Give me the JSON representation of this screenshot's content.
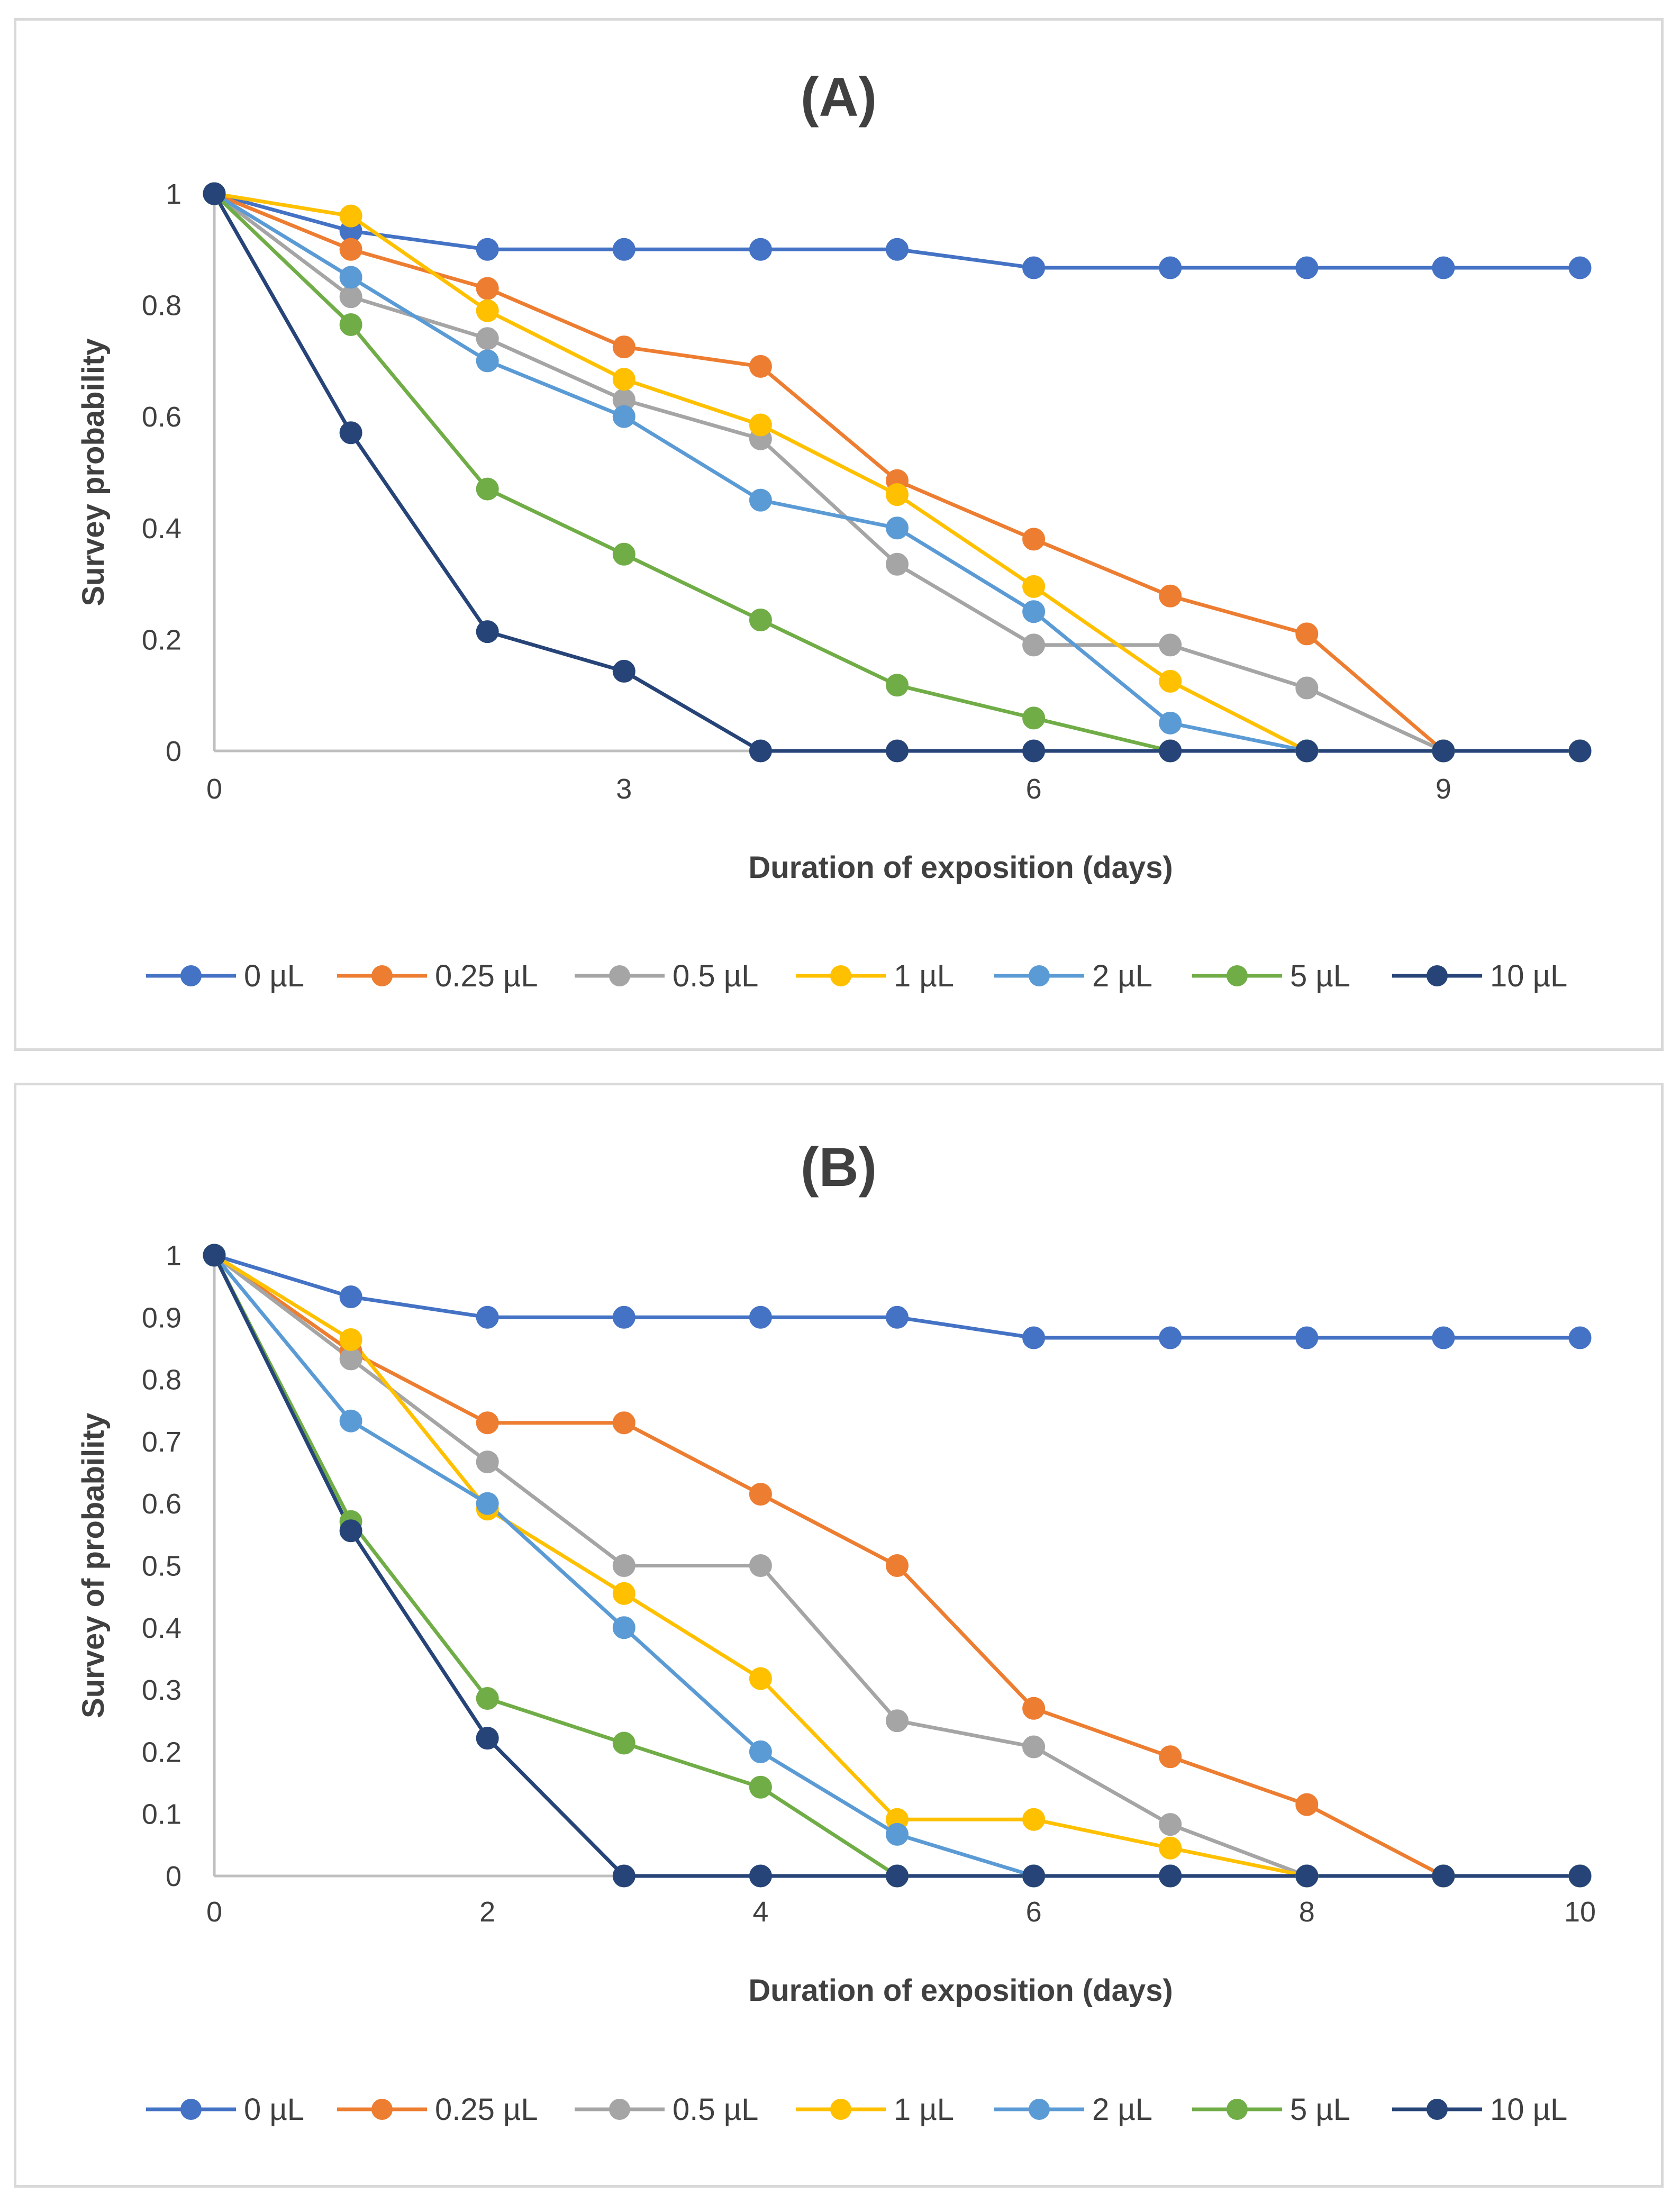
{
  "chart_data": [
    {
      "type": "line",
      "title": "(A)",
      "xlabel": "Duration of exposition (days)",
      "ylabel": "Survey probability",
      "xlim": [
        0,
        10
      ],
      "ylim": [
        0,
        1
      ],
      "xticks": [
        0,
        3,
        6,
        9
      ],
      "xtick_labels": [
        "0",
        "3",
        "6",
        "9"
      ],
      "yticks": [
        0,
        0.2,
        0.4,
        0.6,
        0.8,
        1
      ],
      "ytick_labels": [
        "0",
        "0.2",
        "0.4",
        "0.6",
        "0.8",
        "1"
      ],
      "legend": "bottom",
      "x": [
        0,
        1,
        2,
        3,
        4,
        5,
        6,
        7,
        8,
        9,
        10
      ],
      "series": [
        {
          "name": "0 µL",
          "color": "#4472C4",
          "values": [
            1,
            0.933,
            0.9,
            0.9,
            0.9,
            0.9,
            0.867,
            0.867,
            0.867,
            0.867,
            0.867
          ]
        },
        {
          "name": "0.25 µL",
          "color": "#ED7D31",
          "values": [
            1,
            0.9,
            0.83,
            0.725,
            0.69,
            0.485,
            0.38,
            0.278,
            0.21,
            0,
            0
          ]
        },
        {
          "name": "0.5 µL",
          "color": "#A5A5A5",
          "values": [
            1,
            0.815,
            0.74,
            0.63,
            0.56,
            0.335,
            0.19,
            0.19,
            0.113,
            0,
            0
          ]
        },
        {
          "name": "1 µL",
          "color": "#FFC000",
          "values": [
            1,
            0.96,
            0.79,
            0.667,
            0.585,
            0.46,
            0.295,
            0.125,
            0,
            0,
            0
          ]
        },
        {
          "name": "2 µL",
          "color": "#5B9BD5",
          "values": [
            1,
            0.85,
            0.7,
            0.6,
            0.45,
            0.4,
            0.25,
            0.05,
            0,
            0,
            0
          ]
        },
        {
          "name": "5 µL",
          "color": "#70AD47",
          "values": [
            1,
            0.765,
            0.47,
            0.353,
            0.235,
            0.118,
            0.059,
            0,
            0,
            0,
            0
          ]
        },
        {
          "name": "10 µL",
          "color": "#264478",
          "values": [
            1,
            0.571,
            0.214,
            0.143,
            0,
            0,
            0,
            0,
            0,
            0,
            0
          ]
        }
      ]
    },
    {
      "type": "line",
      "title": "(B)",
      "xlabel": "Duration of exposition (days)",
      "ylabel": "Survey of probability",
      "xlim": [
        0,
        10
      ],
      "ylim": [
        0,
        1
      ],
      "xticks": [
        0,
        2,
        4,
        6,
        8,
        10
      ],
      "xtick_labels": [
        "0",
        "2",
        "4",
        "6",
        "8",
        "10"
      ],
      "yticks": [
        0,
        0.1,
        0.2,
        0.3,
        0.4,
        0.5,
        0.6,
        0.7,
        0.8,
        0.9,
        1
      ],
      "ytick_labels": [
        "0",
        "0.1",
        "0.2",
        "0.3",
        "0.4",
        "0.5",
        "0.6",
        "0.7",
        "0.8",
        "0.9",
        "1"
      ],
      "legend": "bottom",
      "x": [
        0,
        1,
        2,
        3,
        4,
        5,
        6,
        7,
        8,
        9,
        10
      ],
      "series": [
        {
          "name": "0 µL",
          "color": "#4472C4",
          "values": [
            1,
            0.933,
            0.9,
            0.9,
            0.9,
            0.9,
            0.867,
            0.867,
            0.867,
            0.867,
            0.867
          ]
        },
        {
          "name": "0.25 µL",
          "color": "#ED7D31",
          "values": [
            1,
            0.845,
            0.73,
            0.73,
            0.615,
            0.5,
            0.27,
            0.192,
            0.115,
            0,
            0
          ]
        },
        {
          "name": "0.5 µL",
          "color": "#A5A5A5",
          "values": [
            1,
            0.833,
            0.667,
            0.5,
            0.5,
            0.25,
            0.208,
            0.083,
            0,
            0,
            0
          ]
        },
        {
          "name": "1 µL",
          "color": "#FFC000",
          "values": [
            1,
            0.864,
            0.591,
            0.455,
            0.318,
            0.091,
            0.091,
            0.045,
            0,
            0,
            0
          ]
        },
        {
          "name": "2 µL",
          "color": "#5B9BD5",
          "values": [
            1,
            0.733,
            0.6,
            0.4,
            0.2,
            0.067,
            0,
            0,
            0,
            0,
            0
          ]
        },
        {
          "name": "5 µL",
          "color": "#70AD47",
          "values": [
            1,
            0.571,
            0.286,
            0.214,
            0.143,
            0,
            0,
            0,
            0,
            0,
            0
          ]
        },
        {
          "name": "10 µL",
          "color": "#264478",
          "values": [
            1,
            0.556,
            0.222,
            0,
            0,
            0,
            0,
            0,
            0,
            0,
            0
          ]
        }
      ]
    }
  ]
}
